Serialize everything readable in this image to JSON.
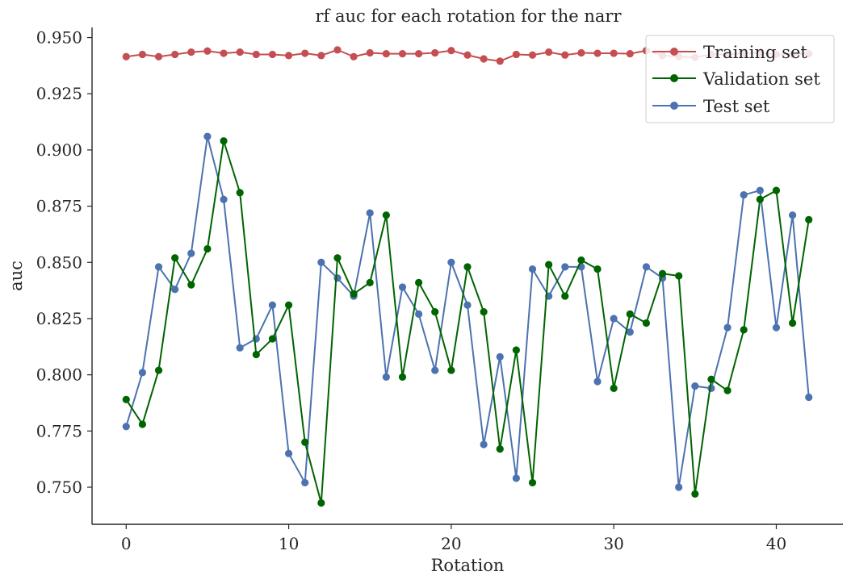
{
  "chart_data": {
    "type": "line",
    "title": "rf auc for each rotation for the narr",
    "xlabel": "Rotation",
    "ylabel": "auc",
    "xlim": [
      -2.1,
      44.1
    ],
    "ylim": [
      0.7335,
      0.9545
    ],
    "xticks": [
      0,
      10,
      20,
      30,
      40
    ],
    "yticks": [
      0.75,
      0.775,
      0.8,
      0.825,
      0.85,
      0.875,
      0.9,
      0.925,
      0.95
    ],
    "ytick_labels": [
      "0.750",
      "0.775",
      "0.800",
      "0.825",
      "0.850",
      "0.875",
      "0.900",
      "0.925",
      "0.950"
    ],
    "grid": false,
    "legend_position": "top-right",
    "x": [
      0,
      1,
      2,
      3,
      4,
      5,
      6,
      7,
      8,
      9,
      10,
      11,
      12,
      13,
      14,
      15,
      16,
      17,
      18,
      19,
      20,
      21,
      22,
      23,
      24,
      25,
      26,
      27,
      28,
      29,
      30,
      31,
      32,
      33,
      34,
      35,
      36,
      37,
      38,
      39,
      40,
      41,
      42
    ],
    "series": [
      {
        "name": "Training set",
        "color": "#c44e52",
        "values": [
          0.9415,
          0.9425,
          0.9415,
          0.9425,
          0.9435,
          0.944,
          0.943,
          0.9435,
          0.9425,
          0.9425,
          0.942,
          0.943,
          0.942,
          0.9445,
          0.9415,
          0.9432,
          0.9428,
          0.9428,
          0.9428,
          0.9432,
          0.9442,
          0.9422,
          0.9405,
          0.9395,
          0.9425,
          0.9422,
          0.9435,
          0.9422,
          0.9432,
          0.943,
          0.943,
          0.9428,
          0.9442,
          0.942,
          0.9415,
          0.9412,
          0.9425,
          0.9425,
          0.943,
          0.9432,
          0.9425,
          0.9425,
          0.9428
        ]
      },
      {
        "name": "Validation set",
        "color": "#006400",
        "values": [
          0.789,
          0.778,
          0.802,
          0.852,
          0.84,
          0.856,
          0.904,
          0.881,
          0.809,
          0.816,
          0.831,
          0.77,
          0.743,
          0.852,
          0.836,
          0.841,
          0.871,
          0.799,
          0.841,
          0.828,
          0.802,
          0.848,
          0.828,
          0.767,
          0.811,
          0.752,
          0.849,
          0.835,
          0.851,
          0.847,
          0.794,
          0.827,
          0.823,
          0.845,
          0.844,
          0.747,
          0.798,
          0.793,
          0.82,
          0.878,
          0.882,
          0.823,
          0.869
        ]
      },
      {
        "name": "Test set",
        "color": "#4c72b0",
        "values": [
          0.777,
          0.801,
          0.848,
          0.838,
          0.854,
          0.906,
          0.878,
          0.812,
          0.816,
          0.831,
          0.765,
          0.752,
          0.85,
          0.843,
          0.835,
          0.872,
          0.799,
          0.839,
          0.827,
          0.802,
          0.85,
          0.831,
          0.769,
          0.808,
          0.754,
          0.847,
          0.835,
          0.848,
          0.848,
          0.797,
          0.825,
          0.819,
          0.848,
          0.843,
          0.75,
          0.795,
          0.794,
          0.821,
          0.88,
          0.882,
          0.821,
          0.871,
          0.79
        ]
      }
    ]
  }
}
